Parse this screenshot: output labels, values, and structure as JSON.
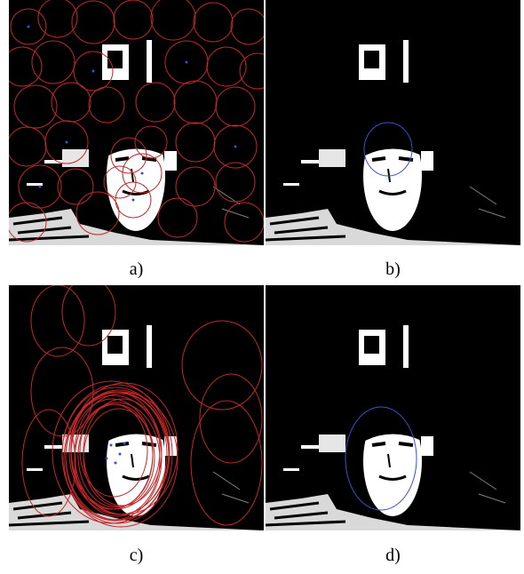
{
  "panels": [
    {
      "id": "a",
      "caption": "a)"
    },
    {
      "id": "b",
      "caption": "b)"
    },
    {
      "id": "c",
      "caption": "c)"
    },
    {
      "id": "d",
      "caption": "d)"
    }
  ],
  "colors": {
    "background": "#000000",
    "foreground": "#ffffff",
    "ellipse_red": "#c0282a",
    "ellipse_blue": "#3a4fd0"
  },
  "icons": [
    "face-image",
    "detection-ellipses"
  ]
}
